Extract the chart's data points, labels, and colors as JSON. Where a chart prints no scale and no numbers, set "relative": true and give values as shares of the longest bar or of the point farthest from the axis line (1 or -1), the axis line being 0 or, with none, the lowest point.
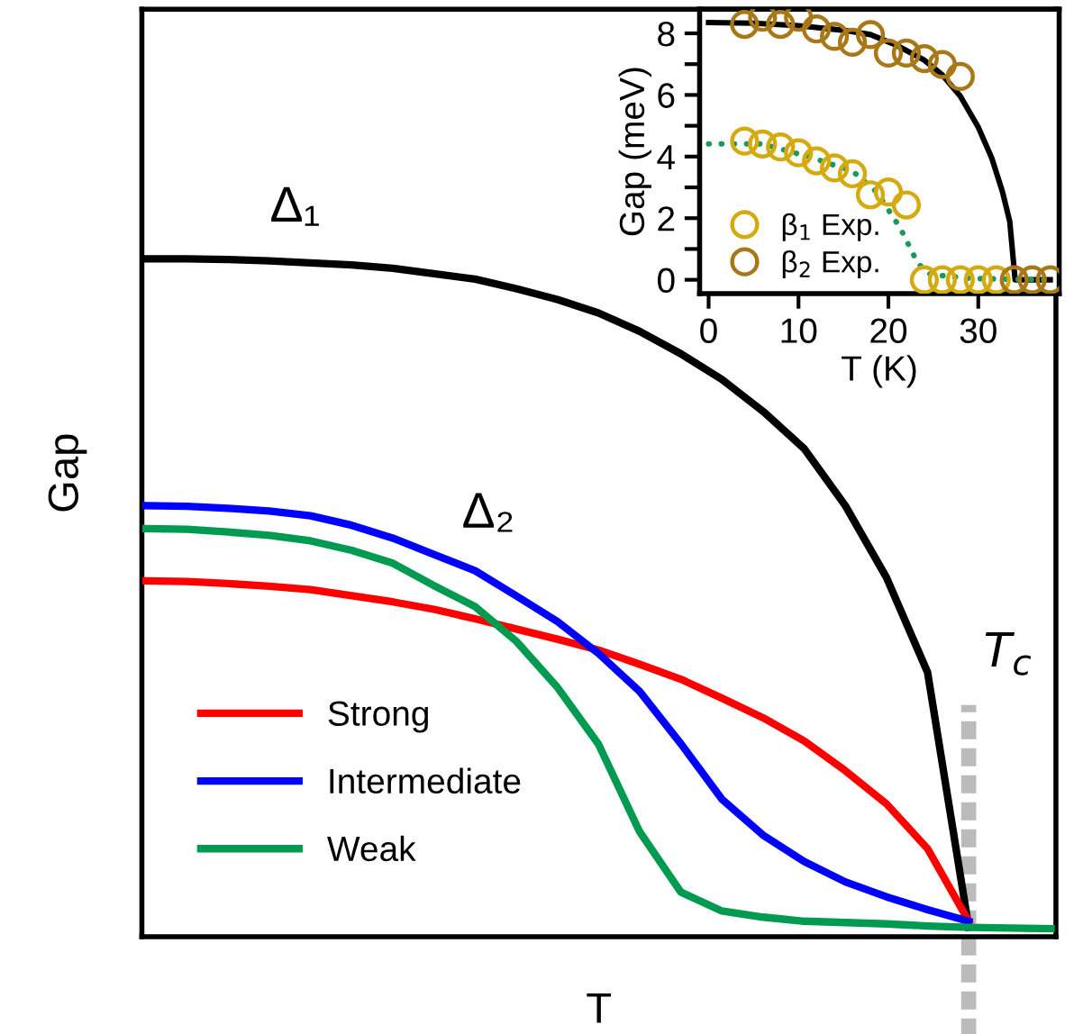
{
  "chart_data": [
    {
      "type": "line",
      "relative": true,
      "xlabel": "T",
      "ylabel": "Gap",
      "legend": "bottom left",
      "grid": false,
      "line_style": "solid",
      "categories": [
        null,
        null,
        null,
        null,
        null,
        null,
        null,
        null,
        null,
        null,
        null,
        null,
        null,
        null,
        null,
        null,
        null,
        null,
        null,
        null,
        null,
        null,
        null
      ],
      "annotations": [
        "Δ₁",
        "Δ₂",
        "T$_{c}$"
      ],
      "series": [
        {
          "color": "#000000",
          "values": [
            1.0,
            1.0,
            0.999,
            0.997,
            0.994,
            0.991,
            0.986,
            0.978,
            0.97,
            0.956,
            0.94,
            0.92,
            0.893,
            0.86,
            0.822,
            0.775,
            0.72,
            0.636,
            0.53,
            0.39,
            0.014,
            null,
            null
          ]
        },
        {
          "name": "Strong",
          "color": "#ff0000",
          "values": [
            0.525,
            0.524,
            0.521,
            0.517,
            0.512,
            0.503,
            0.494,
            0.483,
            0.469,
            0.454,
            0.439,
            0.423,
            0.402,
            0.38,
            0.352,
            0.323,
            0.289,
            0.245,
            0.196,
            0.13,
            0.023,
            null,
            null
          ]
        },
        {
          "name": "Intermediate",
          "color": "#0000ff",
          "values": [
            0.636,
            0.635,
            0.632,
            0.628,
            0.621,
            0.607,
            0.588,
            0.564,
            0.54,
            0.503,
            0.465,
            0.418,
            0.362,
            0.285,
            0.203,
            0.15,
            0.111,
            0.081,
            0.059,
            0.04,
            0.023,
            null,
            null
          ]
        },
        {
          "name": "Weak",
          "color": "#009a50",
          "values": [
            0.602,
            0.601,
            0.597,
            0.592,
            0.584,
            0.57,
            0.551,
            0.518,
            0.487,
            0.436,
            0.368,
            0.284,
            0.155,
            0.066,
            0.038,
            0.029,
            0.023,
            0.021,
            0.019,
            0.016,
            0.014,
            0.013,
            0.012
          ]
        }
      ]
    },
    {
      "type": "scatter",
      "xlabel": "T (K)",
      "ylabel": "Gap (meV)",
      "legend": "bottom left",
      "grid": false,
      "xlim": [
        -1,
        39
      ],
      "xticks": [
        0,
        10,
        20,
        30
      ],
      "ylim": [
        -0.45,
        8.78
      ],
      "yticks": [
        0,
        {
          "value": 1,
          "label": null
        },
        2,
        {
          "value": 3,
          "label": null
        },
        4,
        {
          "value": 5,
          "label": null
        },
        6,
        {
          "value": 7,
          "label": null
        },
        8
      ],
      "series": [
        {
          "type": "line",
          "line_style": "solid",
          "color": "#000000",
          "x": [
            0,
            5,
            10,
            15,
            18,
            21,
            24,
            26,
            28,
            30,
            31.5,
            32.7,
            33.5,
            34.1,
            38
          ],
          "values": [
            8.35,
            8.33,
            8.25,
            8.1,
            7.96,
            7.6,
            7.13,
            6.65,
            5.96,
            4.95,
            3.95,
            2.85,
            1.9,
            0,
            0
          ]
        },
        {
          "type": "line",
          "line_style": "dotted",
          "color": "#1a9a5a",
          "x": [
            0,
            6,
            11.3,
            16,
            18.7,
            21.3,
            23.3,
            24.7,
            29.3,
            38
          ],
          "values": [
            4.41,
            4.41,
            3.98,
            3.53,
            2.85,
            1.69,
            0.52,
            0.17,
            0.04,
            0
          ]
        },
        {
          "name": "β$_{1}$ Exp.",
          "marker": "circle",
          "color": "#d4aa10",
          "x": [
            4,
            6,
            8,
            10,
            12,
            14,
            16,
            18,
            20,
            22,
            24,
            26,
            28,
            30,
            32
          ],
          "values": [
            4.5,
            4.41,
            4.31,
            4.12,
            3.86,
            3.63,
            3.44,
            2.76,
            2.85,
            2.43,
            0,
            0,
            0,
            0,
            0
          ]
        },
        {
          "name": "β$_{2}$ Exp.",
          "marker": "circle",
          "color": "#a87818",
          "x": [
            4,
            6,
            8,
            10,
            12,
            14,
            16,
            18,
            20,
            22,
            24,
            26,
            28,
            34,
            36,
            38
          ],
          "values": [
            8.29,
            8.52,
            8.29,
            8.52,
            8.14,
            7.9,
            7.71,
            7.96,
            7.36,
            7.36,
            7.18,
            6.99,
            6.6,
            0,
            0,
            0
          ]
        }
      ]
    }
  ]
}
